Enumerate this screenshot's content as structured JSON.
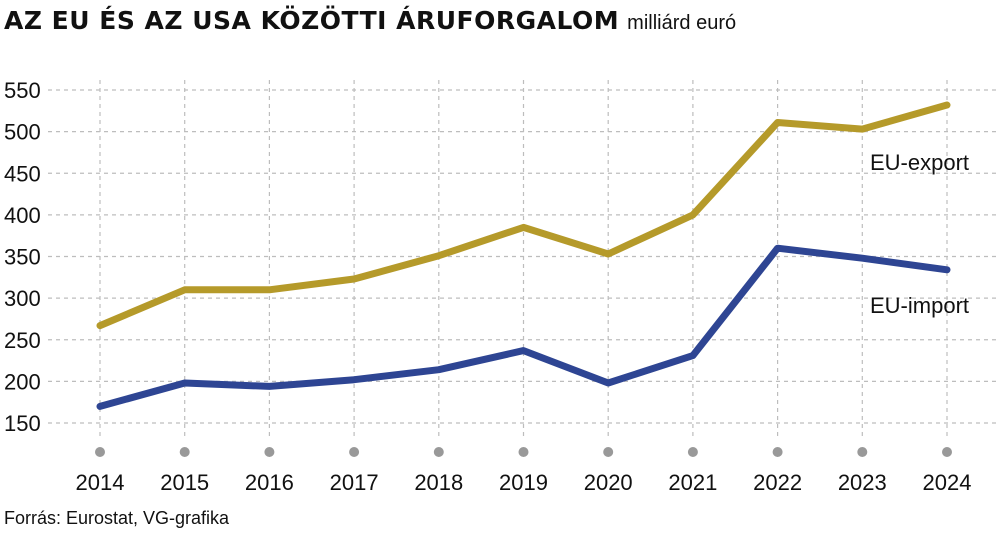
{
  "chart_data": {
    "type": "line",
    "title": "AZ EU ÉS AZ USA KÖZÖTTI ÁRUFORGALOM",
    "unit": "milliárd euró",
    "x": [
      "2014",
      "2015",
      "2016",
      "2017",
      "2018",
      "2019",
      "2020",
      "2021",
      "2022",
      "2023",
      "2024"
    ],
    "series": [
      {
        "name": "EU-export",
        "values": [
          267,
          310,
          310,
          323,
          351,
          385,
          353,
          400,
          511,
          503,
          532
        ],
        "color": "#b59a2a"
      },
      {
        "name": "EU-import",
        "values": [
          170,
          198,
          194,
          202,
          214,
          237,
          198,
          231,
          360,
          348,
          334
        ],
        "color": "#2e4593"
      }
    ],
    "ylim": [
      150,
      550
    ],
    "yticks": [
      150,
      200,
      250,
      300,
      350,
      400,
      450,
      500,
      550
    ],
    "grid": true,
    "marker_color": "#999999",
    "source": "Forrás: Eurostat, VG-grafika"
  }
}
